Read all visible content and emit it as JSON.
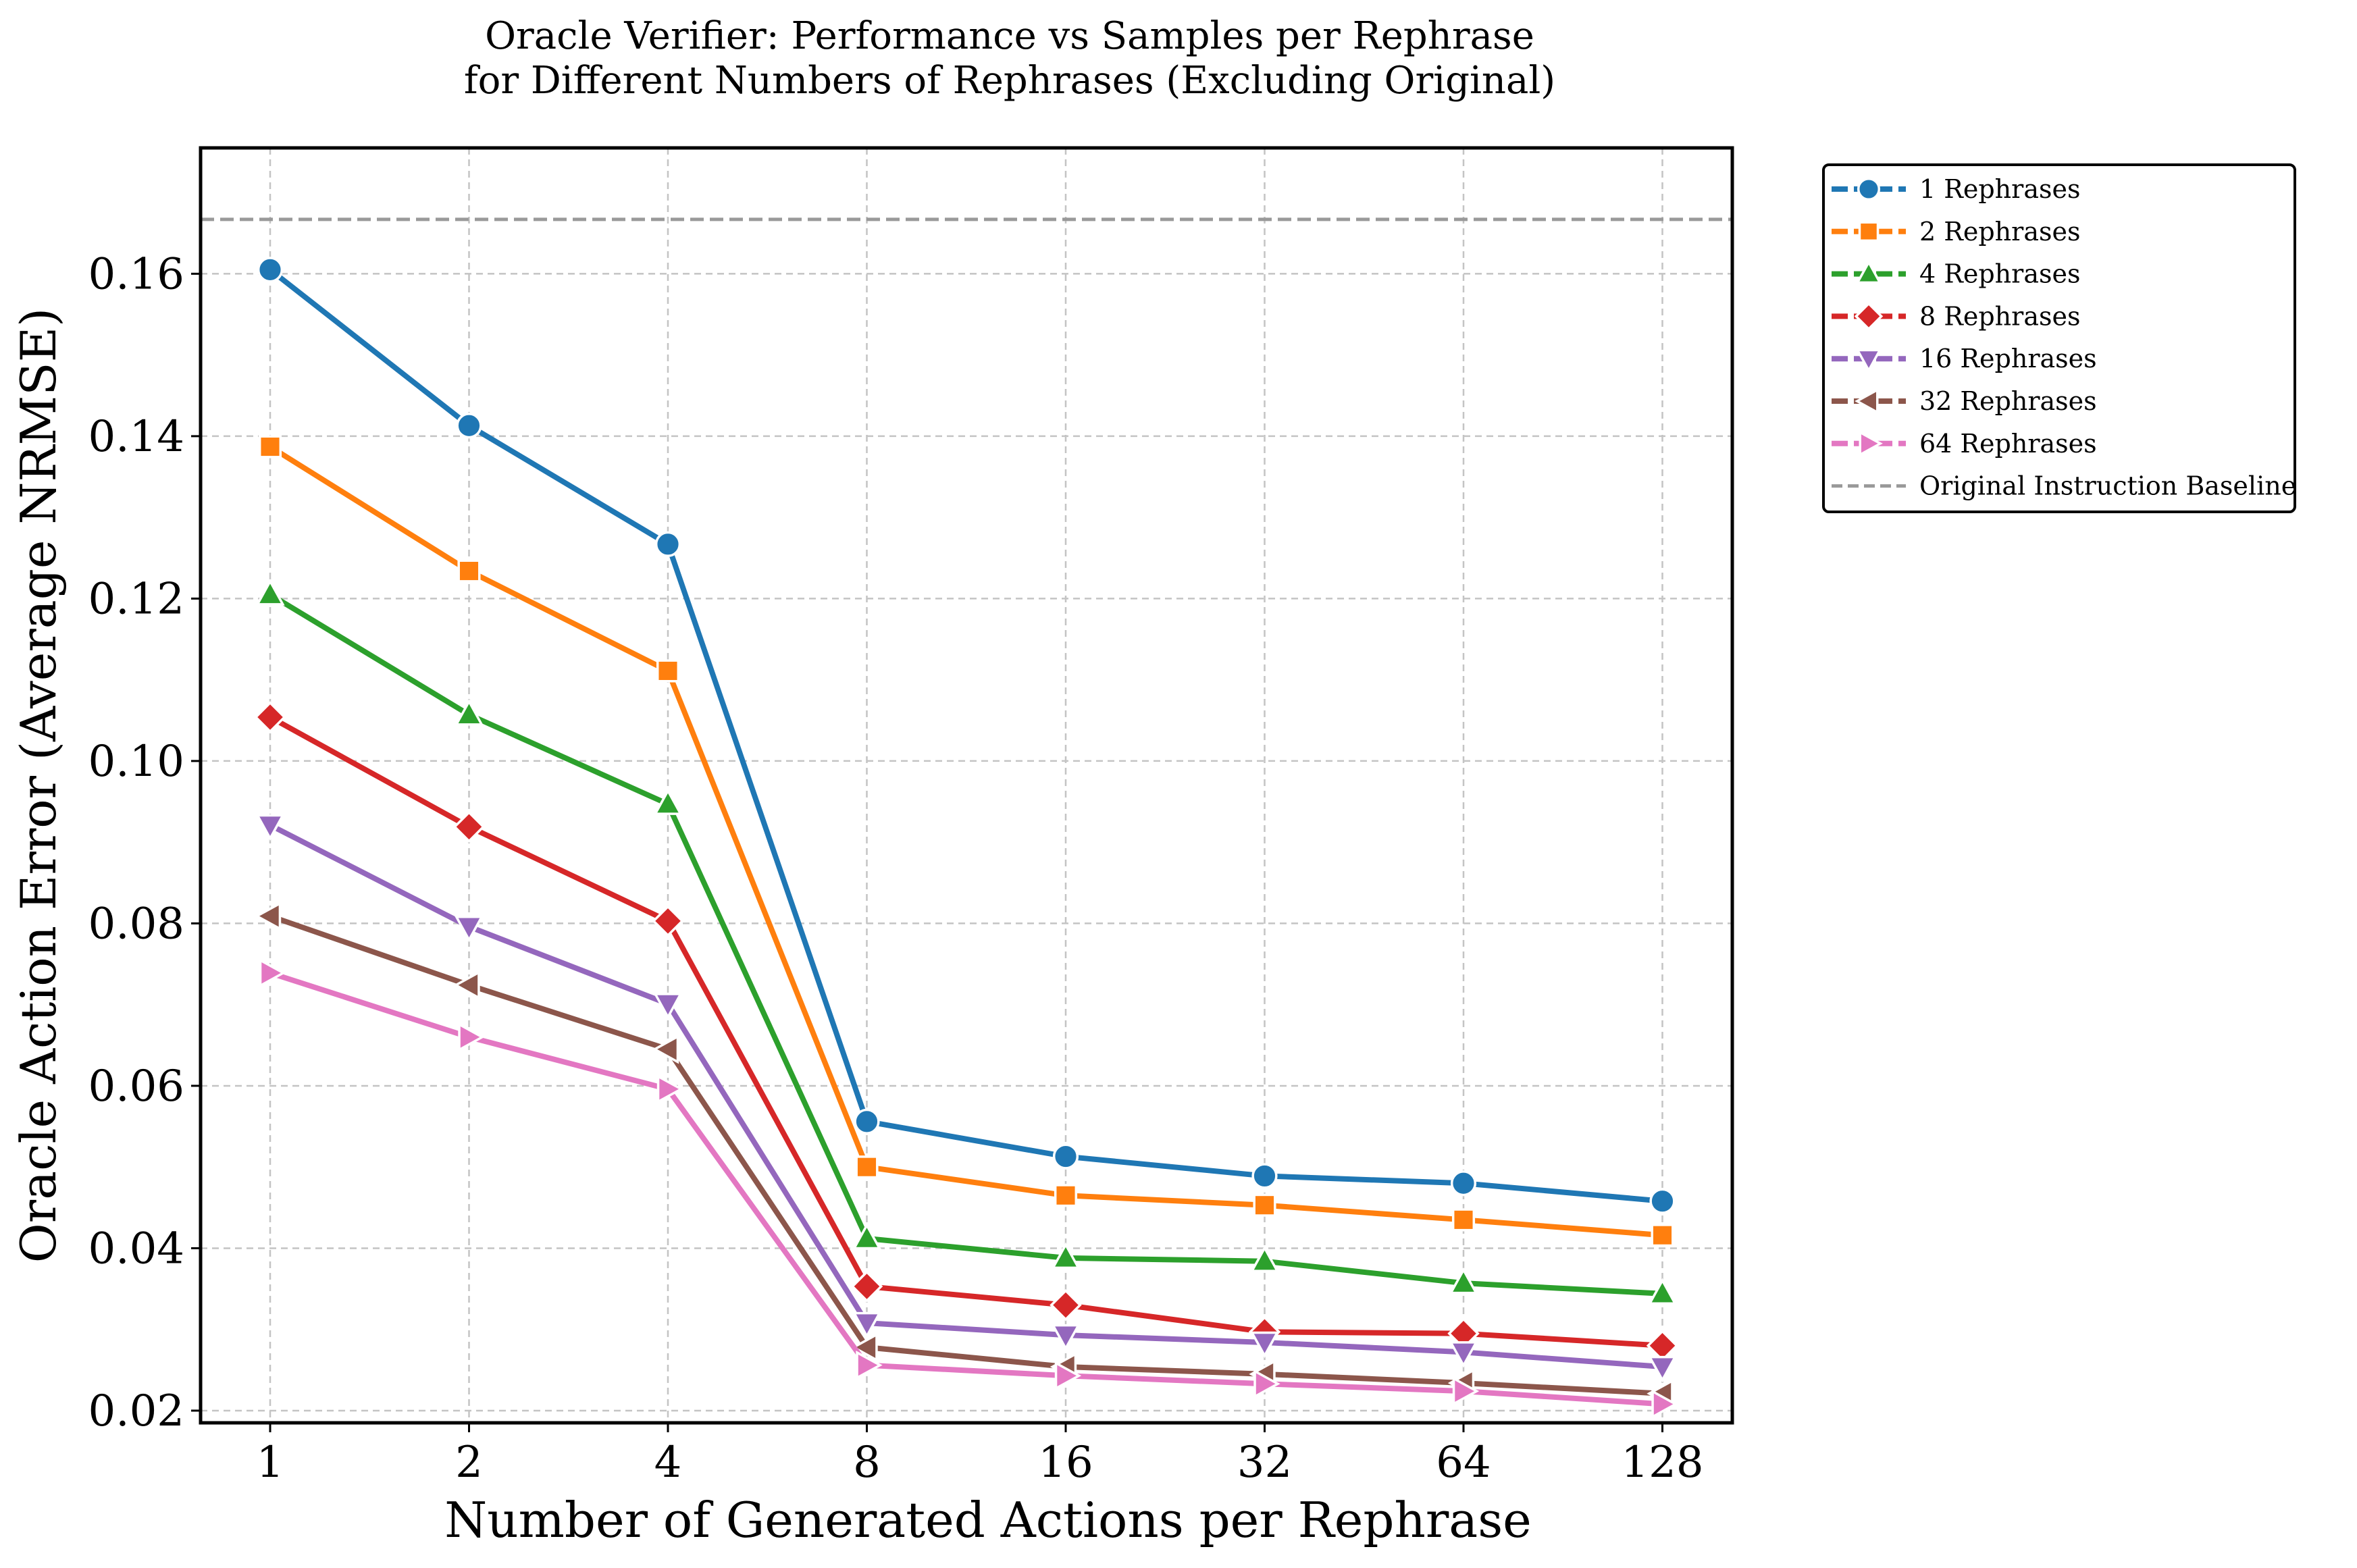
{
  "chart_data": {
    "type": "line",
    "title": "Oracle Verifier: Performance vs Samples per Rephrase",
    "subtitle": "for Different Numbers of Rephrases (Excluding Original)",
    "xlabel": "Number of Generated Actions per Rephrase",
    "ylabel": "Oracle Action Error (Average NRMSE)",
    "categories": [
      "1",
      "2",
      "4",
      "8",
      "16",
      "32",
      "64",
      "128"
    ],
    "x_scale": "log2",
    "ylim": [
      0.0185,
      0.1755
    ],
    "y_ticks": [
      "0.02",
      "0.04",
      "0.06",
      "0.08",
      "0.10",
      "0.12",
      "0.14",
      "0.16"
    ],
    "y_tick_values": [
      0.02,
      0.04,
      0.06,
      0.08,
      0.1,
      0.12,
      0.14,
      0.16
    ],
    "grid": true,
    "legend_position": "outside-top-right",
    "series": [
      {
        "name": "1 Rephrases",
        "color": "#1f77b4",
        "marker": "circle",
        "values": [
          0.1605,
          0.1413,
          0.1267,
          0.0556,
          0.0513,
          0.0489,
          0.048,
          0.0458
        ]
      },
      {
        "name": "2 Rephrases",
        "color": "#ff7f0e",
        "marker": "square",
        "values": [
          0.1387,
          0.1234,
          0.1111,
          0.05,
          0.0465,
          0.0453,
          0.0435,
          0.0416
        ]
      },
      {
        "name": "4 Rephrases",
        "color": "#2ca02c",
        "marker": "triangle-up",
        "values": [
          0.1205,
          0.1057,
          0.0947,
          0.0412,
          0.0388,
          0.0384,
          0.0357,
          0.0344
        ]
      },
      {
        "name": "8 Rephrases",
        "color": "#d62728",
        "marker": "diamond",
        "values": [
          0.1054,
          0.0919,
          0.0803,
          0.0353,
          0.033,
          0.0297,
          0.0295,
          0.028
        ]
      },
      {
        "name": "16 Rephrases",
        "color": "#9467bd",
        "marker": "triangle-down",
        "values": [
          0.0921,
          0.0796,
          0.0701,
          0.0308,
          0.0293,
          0.0284,
          0.0272,
          0.0254
        ]
      },
      {
        "name": "32 Rephrases",
        "color": "#8c564b",
        "marker": "triangle-left",
        "values": [
          0.0809,
          0.0724,
          0.0645,
          0.0278,
          0.0254,
          0.0245,
          0.0234,
          0.0221
        ]
      },
      {
        "name": "64 Rephrases",
        "color": "#e377c2",
        "marker": "triangle-right",
        "values": [
          0.0739,
          0.066,
          0.0596,
          0.0256,
          0.0243,
          0.0233,
          0.0224,
          0.0208
        ]
      }
    ],
    "baseline": {
      "name": "Original Instruction Baseline",
      "value": 0.1667,
      "color": "#999999",
      "style": "dashed"
    }
  }
}
